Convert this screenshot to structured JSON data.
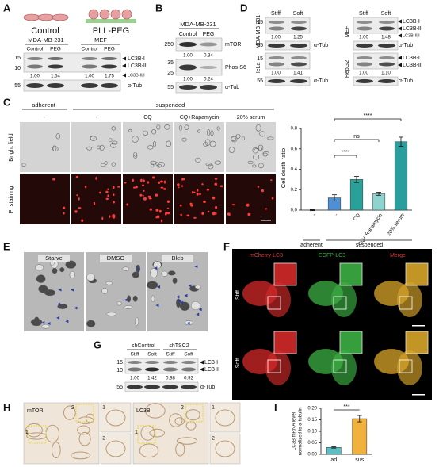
{
  "A": {
    "label": "A",
    "groups": [
      "Control",
      "PLL-PEG"
    ],
    "cell_lines": [
      "MDA-MB-231",
      "MEF"
    ],
    "lanes": [
      "Control",
      "PEG",
      "Control",
      "PEG"
    ],
    "markers": [
      "15",
      "10",
      "55"
    ],
    "bands": [
      "LC3B-I",
      "LC3B-II",
      "LC3B-II/I",
      "α-Tub"
    ],
    "ratios": [
      "1.00",
      "1.54",
      "1.00",
      "1.75"
    ]
  },
  "B": {
    "label": "B",
    "cell_line": "MDA-MB-231",
    "lanes": [
      "Control",
      "PEG"
    ],
    "markers": [
      "250",
      "35",
      "25",
      "55"
    ],
    "bands": [
      "mTOR",
      "Phos-S6",
      "α-Tub"
    ],
    "ratios": [
      "1.00",
      "0.34",
      "1.00",
      "0.24"
    ]
  },
  "D": {
    "label": "D",
    "lanes": [
      "Stiff",
      "Soft",
      "Stiff",
      "Soft"
    ],
    "cell_lines": [
      "MDA-MB-231",
      "HeLa",
      "MEF",
      "HepG2"
    ],
    "markers": [
      "15",
      "55",
      "15",
      "55"
    ],
    "bands_left": [
      "α-Tub",
      "α-Tub"
    ],
    "bands_right": [
      "LC3B-I",
      "LC3B-II",
      "LC3B-II/I",
      "α-Tub",
      "LC3B-I",
      "LC3B-II",
      "α-Tub"
    ],
    "ratios": [
      "1.00",
      "1.25",
      "1.00",
      "1.41",
      "1.00",
      "1.48",
      "1.00",
      "1.10"
    ]
  },
  "C": {
    "label": "C",
    "conditions": [
      "adherent",
      "suspended"
    ],
    "columns": [
      "-",
      "-",
      "CQ",
      "CQ+Rapamycin",
      "20% serum"
    ],
    "rows": [
      "Bright field",
      "PI staining"
    ],
    "chart": {
      "type": "bar",
      "ylabel": "Cell death ratio",
      "categories": [
        "-",
        "-",
        "CQ",
        "CQ+ Rapamycin",
        "20% serum"
      ],
      "groups": [
        "adherent",
        "suspended"
      ],
      "values": [
        0.0,
        0.12,
        0.3,
        0.16,
        0.67
      ],
      "errors": [
        0.005,
        0.03,
        0.03,
        0.015,
        0.045
      ],
      "colors": [
        "#1f2d6b",
        "#4f8fd6",
        "#2aa198",
        "#8fd3cf",
        "#2a9d9d"
      ],
      "ylim": [
        0,
        0.8
      ],
      "yticks": [
        {
          "value": 0,
          "label": "0.0"
        },
        {
          "value": 0.2,
          "label": "0.2"
        },
        {
          "value": 0.4,
          "label": "0.4"
        },
        {
          "value": 0.6,
          "label": "0.6"
        },
        {
          "value": 0.8,
          "label": "0.8"
        }
      ],
      "annotations": [
        "****",
        "ns",
        "****"
      ]
    }
  },
  "E": {
    "label": "E",
    "conditions": [
      "Starve",
      "DMSO",
      "Bleb"
    ]
  },
  "F": {
    "label": "F",
    "channels": [
      "mCherry-LC3",
      "EGFP-LC3",
      "Merge"
    ],
    "rows": [
      "Stiff",
      "Soft"
    ]
  },
  "G": {
    "label": "G",
    "groups": [
      "shControl",
      "shTSC2"
    ],
    "lanes": [
      "Stiff",
      "Soft",
      "Stiff",
      "Soft"
    ],
    "markers": [
      "15",
      "10",
      "55"
    ],
    "bands": [
      "LC3-I",
      "LC3-II",
      "α-Tub"
    ],
    "ratios": [
      "1.00",
      "1.42",
      "0.98",
      "0.92"
    ]
  },
  "H": {
    "label": "H",
    "stains": [
      "mTOR",
      "LC3B"
    ],
    "regions": [
      "1",
      "2",
      "1",
      "2",
      "1",
      "2",
      "1",
      "2"
    ]
  },
  "I": {
    "label": "I",
    "chart": {
      "type": "bar",
      "ylabel": [
        "LC3B mRNA level",
        "normalized to α-tubulin"
      ],
      "categories": [
        "ad",
        "sus"
      ],
      "values": [
        0.03,
        0.155
      ],
      "errors": [
        0.003,
        0.014
      ],
      "colors": [
        "#5bbfc4",
        "#f0b23c"
      ],
      "ylim": [
        0,
        0.2
      ],
      "yticks": [
        {
          "value": 0,
          "label": "0.00"
        },
        {
          "value": 0.05,
          "label": "0.05"
        },
        {
          "value": 0.1,
          "label": "0.10"
        },
        {
          "value": 0.15,
          "label": "0.15"
        },
        {
          "value": 0.2,
          "label": "0.20"
        }
      ],
      "annotation": "***"
    }
  }
}
